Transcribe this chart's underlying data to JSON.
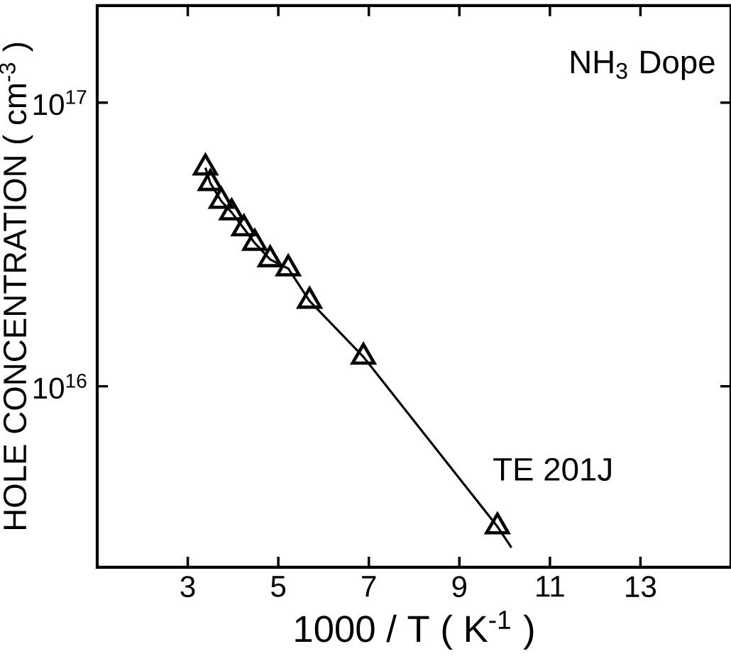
{
  "chart_data": {
    "type": "line",
    "xlabel": "1000 / T    ( K$^{-1}$ )",
    "ylabel": "HOLE    CONCENTRATION   ( cm$^{-3}$ )",
    "annotations": [
      "NH$_{3}$ Dope"
    ],
    "log": "y",
    "xlim": [
      1,
      15
    ],
    "ylim": [
      2300000000000000.0,
      2.2e+17
    ],
    "xticks": [
      3,
      5,
      7,
      9,
      11,
      13
    ],
    "yticks": [
      {
        "value": 1e+16,
        "label": "10$^{16}$"
      },
      {
        "value": 1e+17,
        "label": "10$^{17}$"
      }
    ],
    "grid": false,
    "series": [
      {
        "name": "TE 201J",
        "type": "scatter",
        "color": "#000000",
        "marker": "triangle",
        "x": [
          3.39,
          3.5,
          3.74,
          3.97,
          4.24,
          4.48,
          4.82,
          5.22,
          5.69,
          6.88,
          9.84
        ],
        "values": [
          5.9e+16,
          5.2e+16,
          4.5e+16,
          4.1e+16,
          3.6e+16,
          3.2e+16,
          2.8e+16,
          2.6e+16,
          2e+16,
          1.27e+16,
          3200000000000000.0
        ]
      },
      {
        "color": "#000000",
        "line_style": "solid",
        "marker": "none",
        "x": [
          3.39,
          3.5,
          3.74,
          3.97,
          4.24,
          4.48,
          4.82,
          5.22,
          5.69,
          6.88,
          9.84,
          10.15
        ],
        "values": [
          5.9e+16,
          5.2e+16,
          4.5e+16,
          4.1e+16,
          3.6e+16,
          3.2e+16,
          2.8e+16,
          2.6e+16,
          2e+16,
          1.27e+16,
          3200000000000000.0,
          2700000000000000.0
        ]
      }
    ]
  }
}
